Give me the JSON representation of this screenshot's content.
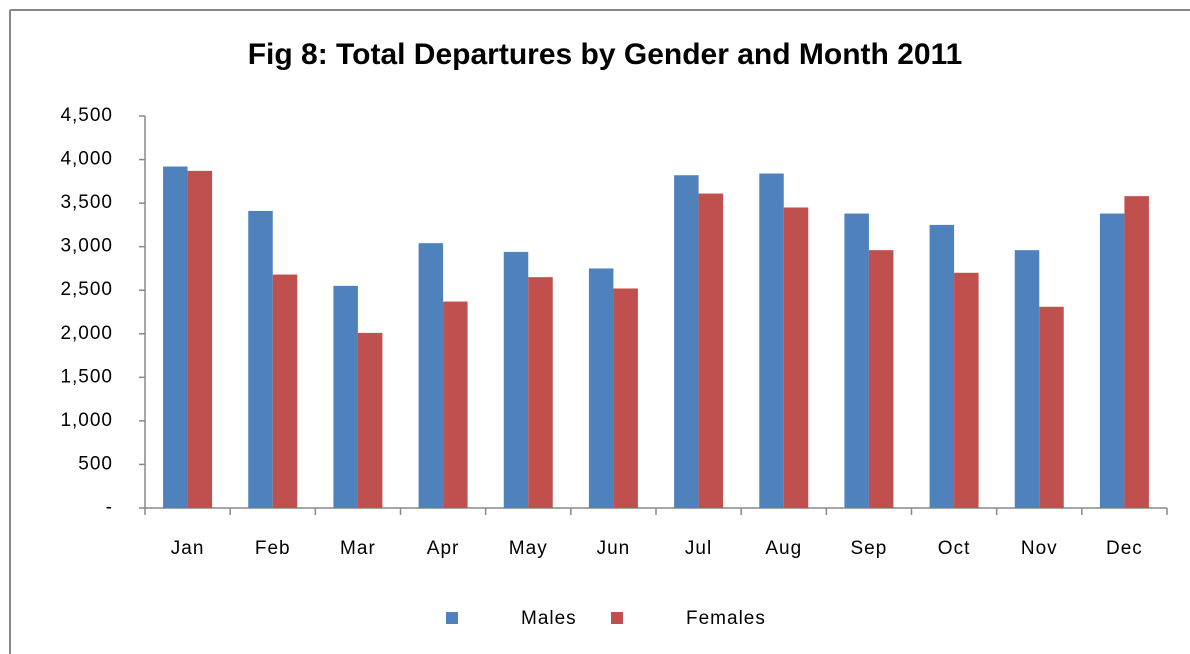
{
  "chart_data": {
    "type": "bar",
    "title": "Fig 8: Total Departures by Gender and Month 2011",
    "categories": [
      "Jan",
      "Feb",
      "Mar",
      "Apr",
      "May",
      "Jun",
      "Jul",
      "Aug",
      "Sep",
      "Oct",
      "Nov",
      "Dec"
    ],
    "series": [
      {
        "name": "Males",
        "color": "#4f81bd",
        "values": [
          3920,
          3410,
          2550,
          3040,
          2940,
          2750,
          3820,
          3840,
          3380,
          3250,
          2960,
          3380
        ]
      },
      {
        "name": "Females",
        "color": "#c0504d",
        "values": [
          3870,
          2680,
          2010,
          2370,
          2650,
          2520,
          3610,
          3450,
          2960,
          2700,
          2310,
          3580
        ]
      }
    ],
    "ylim": [
      0,
      4500
    ],
    "yticks": [
      {
        "value": 0,
        "label": "-"
      },
      {
        "value": 500,
        "label": "500"
      },
      {
        "value": 1000,
        "label": "1,000"
      },
      {
        "value": 1500,
        "label": "1,500"
      },
      {
        "value": 2000,
        "label": "2,000"
      },
      {
        "value": 2500,
        "label": "2,500"
      },
      {
        "value": 3000,
        "label": "3,000"
      },
      {
        "value": 3500,
        "label": "3,500"
      },
      {
        "value": 4000,
        "label": "4,000"
      },
      {
        "value": 4500,
        "label": "4,500"
      }
    ],
    "grid": false,
    "legend": "bottom"
  }
}
